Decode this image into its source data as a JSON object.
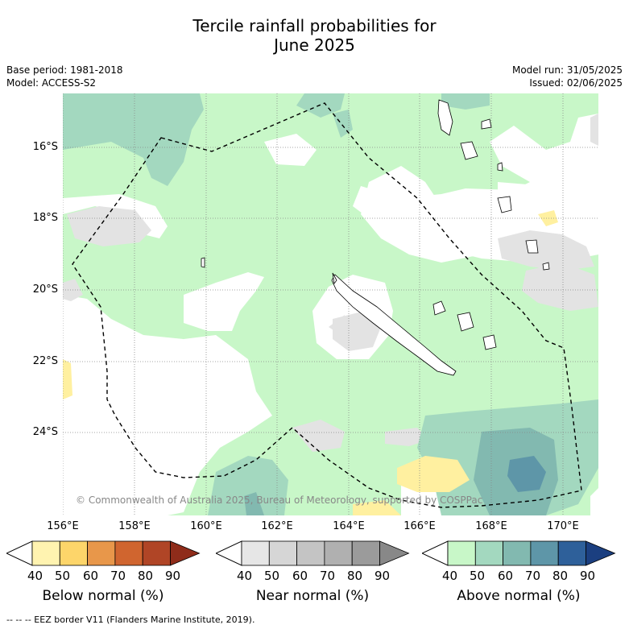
{
  "title_line1": "Tercile rainfall probabilities for",
  "title_line2": "June 2025",
  "base_period": "Base period: 1981-2018",
  "model": "Model: ACCESS-S2",
  "model_run": "Model run: 31/05/2025",
  "issued": "Issued: 02/06/2025",
  "lat_labels": [
    "16°S",
    "18°S",
    "20°S",
    "22°S",
    "24°S"
  ],
  "lon_labels": [
    "156°E",
    "158°E",
    "160°E",
    "162°E",
    "164°E",
    "166°E",
    "168°E",
    "170°E"
  ],
  "copyright": "© Commonwealth of Australia 2025, Bureau of Meteorology, supported by COSPPac",
  "colorbars": [
    {
      "title": "Below normal (%)",
      "ticks": [
        "40",
        "50",
        "60",
        "70",
        "80",
        "90"
      ],
      "colors": [
        "#fff3b0",
        "#fdd56a",
        "#e8974a",
        "#d0652f",
        "#b04526",
        "#8f2c1a"
      ]
    },
    {
      "title": "Near normal (%)",
      "ticks": [
        "40",
        "50",
        "60",
        "70",
        "80",
        "90"
      ],
      "colors": [
        "#e6e6e6",
        "#d6d6d6",
        "#c4c4c4",
        "#b0b0b0",
        "#9b9b9b",
        "#888888"
      ]
    },
    {
      "title": "Above normal (%)",
      "ticks": [
        "40",
        "50",
        "60",
        "70",
        "80",
        "90"
      ],
      "colors": [
        "#c8f7c8",
        "#a3d8bf",
        "#82b9b0",
        "#5e96a8",
        "#2e609a",
        "#1b3f80"
      ]
    }
  ],
  "legend_note": "-- -- -- EEZ border V11 (Flanders Marine Institute, 2019).",
  "colors": {
    "near_normal_40": "#e3e3e3",
    "above_40": "#c8f7c8",
    "above_50": "#a3d8bf",
    "above_60": "#82b9b0",
    "above_70": "#5e96a8",
    "below_40": "#fff0a0"
  }
}
